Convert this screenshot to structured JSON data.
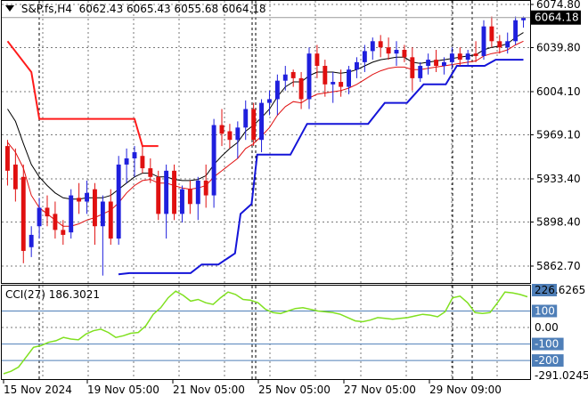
{
  "header": {
    "symbol": "S&P.fs,H4",
    "open": "6062.43",
    "high": "6065.43",
    "low": "6055.68",
    "close": "6064.18"
  },
  "price_axis": {
    "labels": [
      "6074.80",
      "6039.80",
      "6004.10",
      "5969.10",
      "5933.40",
      "5898.40",
      "5862.70"
    ],
    "current_price": "6064.18"
  },
  "cci_panel": {
    "name": "CCI(27)",
    "value": "186.3021",
    "axis_labels": [
      "226.6265",
      "100",
      "0.00",
      "-100",
      "-200",
      "-291.0245"
    ],
    "highlight_labels": [
      "100",
      "-100",
      "-200"
    ]
  },
  "time_axis": {
    "labels": [
      "15 Nov 2024",
      "19 Nov 05:00",
      "21 Nov 05:00",
      "25 Nov 05:00",
      "27 Nov 05:00",
      "29 Nov 09:00"
    ]
  },
  "colors": {
    "bull": "#1f1fdd",
    "bear": "#e01010",
    "ma_red": "#e01010",
    "ma_black": "#000000",
    "stop_red": "#ff1a1a",
    "stop_blue": "#1414d8",
    "cci": "#80e020",
    "axis_tag": "#4f7fb8",
    "current_tag": "#000000"
  },
  "chart_data": [
    {
      "type": "candlestick",
      "title": "S&P.fs,H4",
      "ylim": [
        5845,
        6082
      ],
      "candles": [
        [
          5960,
          5965,
          5928,
          5940
        ],
        [
          5945,
          5958,
          5915,
          5925
        ],
        [
          5935,
          5945,
          5865,
          5875
        ],
        [
          5878,
          5895,
          5870,
          5888
        ],
        [
          5895,
          5918,
          5885,
          5910
        ],
        [
          5910,
          5920,
          5895,
          5903
        ],
        [
          5905,
          5915,
          5885,
          5892
        ],
        [
          5892,
          5900,
          5880,
          5888
        ],
        [
          5890,
          5925,
          5885,
          5920
        ],
        [
          5918,
          5930,
          5905,
          5915
        ],
        [
          5915,
          5932,
          5905,
          5922
        ],
        [
          5925,
          5930,
          5880,
          5895
        ],
        [
          5895,
          5920,
          5855,
          5915
        ],
        [
          5915,
          5925,
          5880,
          5885
        ],
        [
          5885,
          5952,
          5880,
          5945
        ],
        [
          5945,
          5958,
          5930,
          5950
        ],
        [
          5950,
          5960,
          5935,
          5955
        ],
        [
          5952,
          5960,
          5938,
          5942
        ],
        [
          5942,
          5950,
          5930,
          5935
        ],
        [
          5935,
          5940,
          5900,
          5905
        ],
        [
          5905,
          5945,
          5885,
          5940
        ],
        [
          5940,
          5945,
          5900,
          5905
        ],
        [
          5905,
          5928,
          5898,
          5925
        ],
        [
          5925,
          5932,
          5905,
          5913
        ],
        [
          5913,
          5935,
          5900,
          5932
        ],
        [
          5932,
          5945,
          5910,
          5920
        ],
        [
          5920,
          5982,
          5910,
          5977
        ],
        [
          5977,
          5990,
          5960,
          5970
        ],
        [
          5972,
          5978,
          5958,
          5965
        ],
        [
          5965,
          5980,
          5950,
          5975
        ],
        [
          5975,
          5997,
          5965,
          5990
        ],
        [
          5990,
          5995,
          5960,
          5965
        ],
        [
          5965,
          5998,
          5955,
          5995
        ],
        [
          5995,
          6005,
          5985,
          5998
        ],
        [
          5998,
          6018,
          5985,
          6013
        ],
        [
          6013,
          6025,
          6005,
          6018
        ],
        [
          6020,
          6022,
          6008,
          6015
        ],
        [
          6015,
          6020,
          5990,
          5998
        ],
        [
          5998,
          6040,
          5990,
          6035
        ],
        [
          6035,
          6042,
          6015,
          6025
        ],
        [
          6025,
          6030,
          6000,
          6010
        ],
        [
          6010,
          6020,
          5995,
          6012
        ],
        [
          6012,
          6022,
          6000,
          6008
        ],
        [
          6008,
          6025,
          6002,
          6022
        ],
        [
          6022,
          6032,
          6015,
          6028
        ],
        [
          6028,
          6042,
          6020,
          6037
        ],
        [
          6037,
          6048,
          6030,
          6045
        ],
        [
          6045,
          6050,
          6032,
          6040
        ],
        [
          6040,
          6048,
          6030,
          6035
        ],
        [
          6035,
          6045,
          6025,
          6038
        ],
        [
          6038,
          6042,
          6028,
          6032
        ],
        [
          6032,
          6040,
          6005,
          6015
        ],
        [
          6015,
          6028,
          6012,
          6025
        ],
        [
          6025,
          6035,
          6018,
          6030
        ],
        [
          6030,
          6038,
          6020,
          6025
        ],
        [
          6025,
          6032,
          6018,
          6028
        ],
        [
          6028,
          6040,
          6022,
          6035
        ],
        [
          6035,
          6040,
          6025,
          6030
        ],
        [
          6030,
          6038,
          6025,
          6035
        ],
        [
          6035,
          6045,
          6028,
          6033
        ],
        [
          6033,
          6062,
          6030,
          6057
        ],
        [
          6057,
          6065,
          6040,
          6045
        ],
        [
          6045,
          6050,
          6035,
          6040
        ],
        [
          6040,
          6052,
          6035,
          6045
        ],
        [
          6045,
          6065,
          6042,
          6062
        ],
        [
          6062,
          6065,
          6056,
          6064
        ]
      ],
      "ma_red": [
        5963,
        5955,
        5942,
        5920,
        5910,
        5905,
        5900,
        5895,
        5895,
        5897,
        5900,
        5902,
        5905,
        5908,
        5914,
        5922,
        5928,
        5932,
        5933,
        5930,
        5930,
        5928,
        5926,
        5925,
        5926,
        5928,
        5935,
        5940,
        5945,
        5950,
        5958,
        5962,
        5968,
        5975,
        5985,
        5992,
        5996,
        5995,
        5999,
        6002,
        6003,
        6004,
        6005,
        6007,
        6010,
        6014,
        6018,
        6021,
        6023,
        6024,
        6024,
        6022,
        6022,
        6023,
        6024,
        6025,
        6026,
        6027,
        6028,
        6029,
        6033,
        6035,
        6036,
        6038,
        6042,
        6045
      ],
      "ma_black": [
        5990,
        5980,
        5962,
        5945,
        5935,
        5928,
        5922,
        5918,
        5917,
        5917,
        5918,
        5918,
        5918,
        5920,
        5925,
        5930,
        5935,
        5938,
        5938,
        5935,
        5935,
        5933,
        5932,
        5932,
        5933,
        5936,
        5945,
        5952,
        5958,
        5963,
        5972,
        5977,
        5983,
        5990,
        6000,
        6008,
        6012,
        6012,
        6017,
        6020,
        6020,
        6020,
        6019,
        6020,
        6022,
        6025,
        6028,
        6030,
        6031,
        6032,
        6032,
        6028,
        6027,
        6028,
        6029,
        6030,
        6031,
        6032,
        6033,
        6034,
        6038,
        6040,
        6041,
        6043,
        6048,
        6052
      ],
      "stop_red": [
        [
          0,
          6045
        ],
        [
          3,
          6020
        ],
        [
          4,
          5982
        ],
        [
          16,
          5982
        ],
        [
          17,
          5960
        ],
        [
          19,
          5960
        ]
      ],
      "stop_blue": [
        [
          20,
          5856
        ],
        [
          22,
          5857
        ],
        [
          33,
          5857
        ],
        [
          35,
          5864
        ],
        [
          38,
          5864
        ],
        [
          41,
          5873
        ],
        [
          42,
          5905
        ],
        [
          44,
          5913
        ],
        [
          45,
          5953
        ],
        [
          51,
          5953
        ],
        [
          54,
          5978
        ],
        [
          65,
          5978
        ],
        [
          68,
          5995
        ],
        [
          72,
          5995
        ],
        [
          75,
          6010
        ],
        [
          79,
          6010
        ],
        [
          81,
          6025
        ],
        [
          86,
          6025
        ],
        [
          88,
          6030
        ],
        [
          93,
          6030
        ]
      ],
      "stop_blue_indices_note": ""
    },
    {
      "type": "line",
      "title": "CCI(27)",
      "ylim": [
        -291.0245,
        226.6265
      ],
      "levels": [
        100,
        -100,
        -200
      ],
      "values": [
        -280,
        -265,
        -240,
        -180,
        -120,
        -110,
        -90,
        -80,
        -60,
        -70,
        -75,
        -40,
        -20,
        -10,
        -30,
        -60,
        -50,
        -35,
        -30,
        10,
        80,
        120,
        180,
        220,
        195,
        160,
        170,
        150,
        140,
        180,
        215,
        200,
        170,
        165,
        150,
        110,
        90,
        85,
        100,
        115,
        120,
        110,
        100,
        95,
        90,
        80,
        60,
        40,
        35,
        45,
        60,
        55,
        50,
        55,
        60,
        70,
        80,
        75,
        65,
        95,
        180,
        190,
        150,
        90,
        85,
        90,
        150,
        215,
        210,
        200,
        186
      ]
    }
  ]
}
